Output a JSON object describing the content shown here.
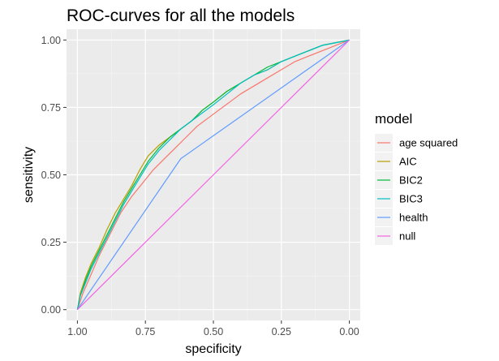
{
  "chart_data": {
    "type": "line",
    "title": "ROC-curves for all the models",
    "xlabel": "specificity",
    "ylabel": "sensitivity",
    "x_reversed": true,
    "xlim": [
      1.04,
      -0.04
    ],
    "ylim": [
      -0.04,
      1.04
    ],
    "x_ticks": [
      1.0,
      0.75,
      0.5,
      0.25,
      0.0
    ],
    "x_tick_labels": [
      "1.00",
      "0.75",
      "0.50",
      "0.25",
      "0.00"
    ],
    "y_ticks": [
      0.0,
      0.25,
      0.5,
      0.75,
      1.0
    ],
    "y_tick_labels": [
      "0.00",
      "0.25",
      "0.50",
      "0.75",
      "1.00"
    ],
    "grid": true,
    "legend": {
      "title": "model",
      "position": "right"
    },
    "series": [
      {
        "name": "age squared",
        "color": "#F8766D",
        "points": [
          [
            1.0,
            0.0
          ],
          [
            0.98,
            0.06
          ],
          [
            0.95,
            0.13
          ],
          [
            0.92,
            0.2
          ],
          [
            0.88,
            0.28
          ],
          [
            0.84,
            0.36
          ],
          [
            0.8,
            0.42
          ],
          [
            0.76,
            0.47
          ],
          [
            0.72,
            0.52
          ],
          [
            0.68,
            0.56
          ],
          [
            0.64,
            0.6
          ],
          [
            0.6,
            0.64
          ],
          [
            0.56,
            0.68
          ],
          [
            0.52,
            0.71
          ],
          [
            0.48,
            0.74
          ],
          [
            0.44,
            0.77
          ],
          [
            0.4,
            0.8
          ],
          [
            0.35,
            0.83
          ],
          [
            0.3,
            0.86
          ],
          [
            0.25,
            0.89
          ],
          [
            0.2,
            0.92
          ],
          [
            0.15,
            0.94
          ],
          [
            0.1,
            0.96
          ],
          [
            0.05,
            0.98
          ],
          [
            0.0,
            1.0
          ]
        ]
      },
      {
        "name": "AIC",
        "color": "#B79F00",
        "points": [
          [
            1.0,
            0.0
          ],
          [
            0.99,
            0.06
          ],
          [
            0.97,
            0.12
          ],
          [
            0.95,
            0.17
          ],
          [
            0.92,
            0.23
          ],
          [
            0.89,
            0.3
          ],
          [
            0.86,
            0.36
          ],
          [
            0.83,
            0.41
          ],
          [
            0.8,
            0.46
          ],
          [
            0.77,
            0.52
          ],
          [
            0.74,
            0.57
          ],
          [
            0.7,
            0.61
          ],
          [
            0.66,
            0.64
          ],
          [
            0.62,
            0.67
          ],
          [
            0.58,
            0.7
          ],
          [
            0.54,
            0.74
          ],
          [
            0.5,
            0.77
          ],
          [
            0.45,
            0.81
          ],
          [
            0.4,
            0.84
          ],
          [
            0.35,
            0.87
          ],
          [
            0.3,
            0.89
          ],
          [
            0.25,
            0.92
          ],
          [
            0.2,
            0.94
          ],
          [
            0.15,
            0.96
          ],
          [
            0.1,
            0.98
          ],
          [
            0.05,
            0.99
          ],
          [
            0.0,
            1.0
          ]
        ]
      },
      {
        "name": "BIC2",
        "color": "#00BA38",
        "points": [
          [
            1.0,
            0.0
          ],
          [
            0.99,
            0.05
          ],
          [
            0.97,
            0.11
          ],
          [
            0.95,
            0.16
          ],
          [
            0.92,
            0.22
          ],
          [
            0.89,
            0.28
          ],
          [
            0.86,
            0.34
          ],
          [
            0.83,
            0.4
          ],
          [
            0.8,
            0.45
          ],
          [
            0.77,
            0.5
          ],
          [
            0.74,
            0.55
          ],
          [
            0.7,
            0.6
          ],
          [
            0.66,
            0.64
          ],
          [
            0.62,
            0.67
          ],
          [
            0.58,
            0.7
          ],
          [
            0.54,
            0.74
          ],
          [
            0.5,
            0.77
          ],
          [
            0.45,
            0.81
          ],
          [
            0.4,
            0.84
          ],
          [
            0.35,
            0.87
          ],
          [
            0.3,
            0.9
          ],
          [
            0.25,
            0.92
          ],
          [
            0.2,
            0.94
          ],
          [
            0.15,
            0.96
          ],
          [
            0.1,
            0.98
          ],
          [
            0.05,
            0.99
          ],
          [
            0.0,
            1.0
          ]
        ]
      },
      {
        "name": "BIC3",
        "color": "#00BFC4",
        "points": [
          [
            1.0,
            0.0
          ],
          [
            0.99,
            0.05
          ],
          [
            0.97,
            0.1
          ],
          [
            0.95,
            0.15
          ],
          [
            0.92,
            0.21
          ],
          [
            0.89,
            0.27
          ],
          [
            0.86,
            0.33
          ],
          [
            0.83,
            0.39
          ],
          [
            0.8,
            0.44
          ],
          [
            0.77,
            0.49
          ],
          [
            0.74,
            0.54
          ],
          [
            0.7,
            0.59
          ],
          [
            0.66,
            0.63
          ],
          [
            0.62,
            0.67
          ],
          [
            0.58,
            0.7
          ],
          [
            0.54,
            0.73
          ],
          [
            0.5,
            0.76
          ],
          [
            0.45,
            0.8
          ],
          [
            0.4,
            0.84
          ],
          [
            0.35,
            0.87
          ],
          [
            0.3,
            0.89
          ],
          [
            0.25,
            0.92
          ],
          [
            0.2,
            0.94
          ],
          [
            0.15,
            0.96
          ],
          [
            0.1,
            0.98
          ],
          [
            0.05,
            0.99
          ],
          [
            0.0,
            1.0
          ]
        ]
      },
      {
        "name": "health",
        "color": "#619CFF",
        "points": [
          [
            1.0,
            0.0
          ],
          [
            0.62,
            0.56
          ],
          [
            0.0,
            1.0
          ]
        ]
      },
      {
        "name": "null",
        "color": "#F564E3",
        "points": [
          [
            1.0,
            0.0
          ],
          [
            0.0,
            1.0
          ]
        ]
      }
    ]
  }
}
